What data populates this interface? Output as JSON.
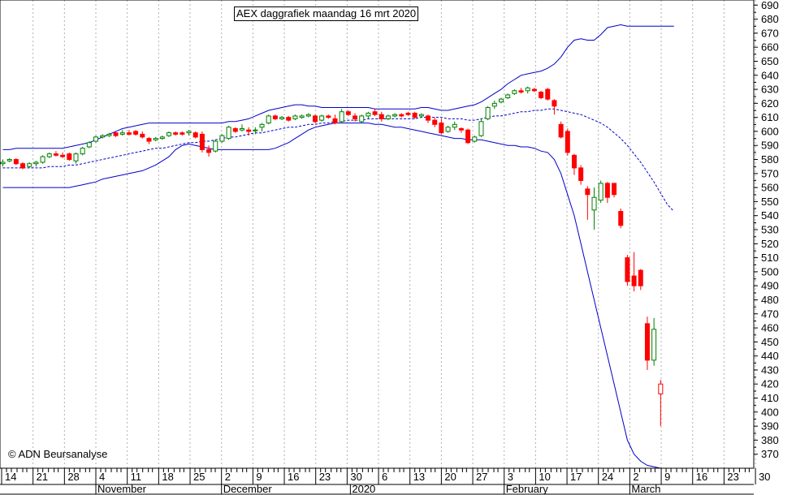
{
  "title": "AEX daggrafiek maandag 16 mrt 2020",
  "copyright": "© ADN Beursanalyse",
  "colors": {
    "up": "#008000",
    "down": "#ff0000",
    "band": "#0000cc",
    "ma": "#0000cc",
    "grid": "#b0b0b0"
  },
  "chart_data": {
    "type": "candlestick",
    "title": "AEX daggrafiek maandag 16 mrt 2020",
    "ylim": [
      360,
      700
    ],
    "yticks": [
      370,
      380,
      390,
      400,
      410,
      420,
      430,
      440,
      450,
      460,
      470,
      480,
      490,
      500,
      510,
      520,
      530,
      540,
      550,
      560,
      570,
      580,
      590,
      600,
      610,
      620,
      630,
      640,
      650,
      660,
      670,
      680,
      690
    ],
    "x_day_labels": [
      "14",
      "21",
      "28",
      "4",
      "11",
      "18",
      "25",
      "2",
      "9",
      "16",
      "23",
      "30",
      "6",
      "13",
      "20",
      "27",
      "3",
      "10",
      "17",
      "24",
      "2",
      "9",
      "16",
      "23",
      "30"
    ],
    "months": [
      "November",
      "December",
      "2020",
      "February",
      "March"
    ],
    "grid": true,
    "candles": [
      {
        "o": 577,
        "h": 580,
        "l": 575,
        "c": 578
      },
      {
        "o": 579,
        "h": 581,
        "l": 578,
        "c": 580
      },
      {
        "o": 580,
        "h": 581,
        "l": 576,
        "c": 577
      },
      {
        "o": 577,
        "h": 578,
        "l": 573,
        "c": 574
      },
      {
        "o": 575,
        "h": 578,
        "l": 574,
        "c": 577
      },
      {
        "o": 577,
        "h": 579,
        "l": 575,
        "c": 578
      },
      {
        "o": 578,
        "h": 583,
        "l": 577,
        "c": 582
      },
      {
        "o": 582,
        "h": 585,
        "l": 581,
        "c": 584
      },
      {
        "o": 584,
        "h": 586,
        "l": 582,
        "c": 583
      },
      {
        "o": 583,
        "h": 585,
        "l": 581,
        "c": 582
      },
      {
        "o": 584,
        "h": 585,
        "l": 579,
        "c": 580
      },
      {
        "o": 579,
        "h": 585,
        "l": 577,
        "c": 584
      },
      {
        "o": 584,
        "h": 589,
        "l": 583,
        "c": 588
      },
      {
        "o": 589,
        "h": 593,
        "l": 588,
        "c": 592
      },
      {
        "o": 593,
        "h": 597,
        "l": 592,
        "c": 596
      },
      {
        "o": 596,
        "h": 598,
        "l": 595,
        "c": 597
      },
      {
        "o": 597,
        "h": 599,
        "l": 596,
        "c": 598
      },
      {
        "o": 599,
        "h": 600,
        "l": 596,
        "c": 597
      },
      {
        "o": 598,
        "h": 601,
        "l": 597,
        "c": 599
      },
      {
        "o": 599,
        "h": 601,
        "l": 597,
        "c": 598
      },
      {
        "o": 600,
        "h": 601,
        "l": 597,
        "c": 598
      },
      {
        "o": 598,
        "h": 600,
        "l": 595,
        "c": 596
      },
      {
        "o": 595,
        "h": 596,
        "l": 591,
        "c": 593
      },
      {
        "o": 594,
        "h": 596,
        "l": 593,
        "c": 595
      },
      {
        "o": 595,
        "h": 597,
        "l": 594,
        "c": 596
      },
      {
        "o": 597,
        "h": 600,
        "l": 596,
        "c": 599
      },
      {
        "o": 599,
        "h": 600,
        "l": 597,
        "c": 598
      },
      {
        "o": 599,
        "h": 600,
        "l": 597,
        "c": 598
      },
      {
        "o": 599,
        "h": 601,
        "l": 597,
        "c": 600
      },
      {
        "o": 599,
        "h": 600,
        "l": 595,
        "c": 596
      },
      {
        "o": 598,
        "h": 600,
        "l": 585,
        "c": 587
      },
      {
        "o": 587,
        "h": 590,
        "l": 582,
        "c": 585
      },
      {
        "o": 586,
        "h": 594,
        "l": 585,
        "c": 593
      },
      {
        "o": 593,
        "h": 598,
        "l": 592,
        "c": 597
      },
      {
        "o": 595,
        "h": 604,
        "l": 594,
        "c": 603
      },
      {
        "o": 602,
        "h": 603,
        "l": 599,
        "c": 600
      },
      {
        "o": 601,
        "h": 605,
        "l": 600,
        "c": 602
      },
      {
        "o": 601,
        "h": 603,
        "l": 597,
        "c": 600
      },
      {
        "o": 601,
        "h": 603,
        "l": 598,
        "c": 601
      },
      {
        "o": 603,
        "h": 606,
        "l": 600,
        "c": 605
      },
      {
        "o": 606,
        "h": 612,
        "l": 605,
        "c": 611
      },
      {
        "o": 611,
        "h": 612,
        "l": 608,
        "c": 609
      },
      {
        "o": 609,
        "h": 611,
        "l": 608,
        "c": 610
      },
      {
        "o": 610,
        "h": 611,
        "l": 607,
        "c": 608
      },
      {
        "o": 609,
        "h": 612,
        "l": 608,
        "c": 611
      },
      {
        "o": 610,
        "h": 612,
        "l": 609,
        "c": 611
      },
      {
        "o": 611,
        "h": 613,
        "l": 610,
        "c": 612
      },
      {
        "o": 611,
        "h": 612,
        "l": 606,
        "c": 607
      },
      {
        "o": 608,
        "h": 612,
        "l": 607,
        "c": 611
      },
      {
        "o": 611,
        "h": 612,
        "l": 609,
        "c": 610
      },
      {
        "o": 609,
        "h": 612,
        "l": 605,
        "c": 606
      },
      {
        "o": 607,
        "h": 616,
        "l": 606,
        "c": 614
      },
      {
        "o": 614,
        "h": 615,
        "l": 611,
        "c": 612
      },
      {
        "o": 611,
        "h": 613,
        "l": 607,
        "c": 609
      },
      {
        "o": 607,
        "h": 612,
        "l": 606,
        "c": 611
      },
      {
        "o": 611,
        "h": 614,
        "l": 609,
        "c": 613
      },
      {
        "o": 614,
        "h": 616,
        "l": 611,
        "c": 612
      },
      {
        "o": 612,
        "h": 614,
        "l": 607,
        "c": 609
      },
      {
        "o": 609,
        "h": 612,
        "l": 608,
        "c": 611
      },
      {
        "o": 611,
        "h": 613,
        "l": 610,
        "c": 612
      },
      {
        "o": 612,
        "h": 613,
        "l": 610,
        "c": 611
      },
      {
        "o": 613,
        "h": 614,
        "l": 611,
        "c": 612
      },
      {
        "o": 613,
        "h": 614,
        "l": 609,
        "c": 610
      },
      {
        "o": 611,
        "h": 613,
        "l": 610,
        "c": 612
      },
      {
        "o": 611,
        "h": 612,
        "l": 606,
        "c": 608
      },
      {
        "o": 608,
        "h": 610,
        "l": 603,
        "c": 605
      },
      {
        "o": 606,
        "h": 609,
        "l": 598,
        "c": 599
      },
      {
        "o": 600,
        "h": 604,
        "l": 599,
        "c": 603
      },
      {
        "o": 603,
        "h": 607,
        "l": 601,
        "c": 605
      },
      {
        "o": 602,
        "h": 603,
        "l": 599,
        "c": 601
      },
      {
        "o": 601,
        "h": 602,
        "l": 591,
        "c": 592
      },
      {
        "o": 593,
        "h": 597,
        "l": 592,
        "c": 596
      },
      {
        "o": 597,
        "h": 609,
        "l": 596,
        "c": 607
      },
      {
        "o": 609,
        "h": 618,
        "l": 608,
        "c": 617
      },
      {
        "o": 618,
        "h": 622,
        "l": 616,
        "c": 620
      },
      {
        "o": 621,
        "h": 624,
        "l": 620,
        "c": 623
      },
      {
        "o": 624,
        "h": 627,
        "l": 623,
        "c": 626
      },
      {
        "o": 627,
        "h": 630,
        "l": 626,
        "c": 629
      },
      {
        "o": 629,
        "h": 631,
        "l": 627,
        "c": 628
      },
      {
        "o": 629,
        "h": 632,
        "l": 627,
        "c": 631
      },
      {
        "o": 630,
        "h": 631,
        "l": 628,
        "c": 629
      },
      {
        "o": 628,
        "h": 629,
        "l": 623,
        "c": 624
      },
      {
        "o": 630,
        "h": 631,
        "l": 622,
        "c": 623
      },
      {
        "o": 622,
        "h": 623,
        "l": 612,
        "c": 618
      },
      {
        "o": 605,
        "h": 607,
        "l": 595,
        "c": 596
      },
      {
        "o": 600,
        "h": 602,
        "l": 583,
        "c": 585
      },
      {
        "o": 583,
        "h": 584,
        "l": 569,
        "c": 574
      },
      {
        "o": 574,
        "h": 576,
        "l": 562,
        "c": 565
      },
      {
        "o": 559,
        "h": 561,
        "l": 537,
        "c": 555
      },
      {
        "o": 544,
        "h": 560,
        "l": 530,
        "c": 553
      },
      {
        "o": 551,
        "h": 565,
        "l": 549,
        "c": 563
      },
      {
        "o": 563,
        "h": 564,
        "l": 549,
        "c": 553
      },
      {
        "o": 563,
        "h": 563,
        "l": 553,
        "c": 555
      },
      {
        "o": 543,
        "h": 545,
        "l": 531,
        "c": 533
      },
      {
        "o": 510,
        "h": 512,
        "l": 490,
        "c": 493
      },
      {
        "o": 497,
        "h": 514,
        "l": 486,
        "c": 490
      },
      {
        "o": 501,
        "h": 502,
        "l": 487,
        "c": 490
      },
      {
        "o": 463,
        "h": 468,
        "l": 430,
        "c": 437
      },
      {
        "o": 437,
        "h": 467,
        "l": 433,
        "c": 459
      },
      {
        "o": 420,
        "h": 423,
        "l": 390,
        "c": 413
      }
    ],
    "sma": [
      574,
      574,
      574,
      574,
      574,
      574,
      574,
      575,
      575,
      575,
      576,
      576,
      577,
      578,
      579,
      580,
      581,
      582,
      583,
      584,
      585,
      586,
      587,
      588,
      588,
      589,
      590,
      591,
      592,
      592,
      593,
      593,
      594,
      595,
      596,
      596,
      597,
      598,
      599,
      599,
      600,
      601,
      602,
      603,
      603,
      604,
      605,
      605,
      606,
      606,
      607,
      607,
      608,
      608,
      608,
      609,
      609,
      609,
      609,
      609,
      609,
      609,
      609,
      610,
      610,
      610,
      610,
      609,
      609,
      609,
      608,
      608,
      609,
      610,
      611,
      611,
      612,
      613,
      614,
      614,
      615,
      615,
      616,
      616,
      615,
      614,
      613,
      612,
      610,
      608,
      606,
      603,
      599,
      595,
      590,
      584,
      578,
      571,
      564,
      556,
      548,
      543
    ],
    "bb_upper": [
      587,
      587,
      588,
      588,
      588,
      588,
      588,
      588,
      588,
      588,
      589,
      590,
      591,
      592,
      594,
      596,
      598,
      600,
      602,
      603,
      604,
      605,
      606,
      606,
      606,
      606,
      606,
      606,
      606,
      606,
      606,
      606,
      606,
      606,
      607,
      607,
      608,
      609,
      611,
      613,
      615,
      616,
      617,
      618,
      619,
      619,
      618,
      618,
      617,
      617,
      617,
      617,
      617,
      617,
      617,
      617,
      616,
      616,
      616,
      616,
      616,
      616,
      616,
      617,
      617,
      616,
      615,
      615,
      616,
      617,
      618,
      619,
      621,
      624,
      627,
      630,
      634,
      637,
      640,
      641,
      642,
      643,
      645,
      648,
      653,
      660,
      665,
      666,
      665,
      665,
      669,
      674,
      675,
      676,
      675,
      675,
      675,
      675,
      675,
      675,
      675,
      675
    ],
    "bb_lower": [
      560,
      560,
      560,
      560,
      560,
      560,
      560,
      560,
      560,
      560,
      560,
      561,
      562,
      563,
      564,
      566,
      567,
      568,
      569,
      570,
      571,
      572,
      574,
      576,
      579,
      582,
      587,
      590,
      591,
      590,
      589,
      588,
      587,
      587,
      587,
      587,
      587,
      587,
      587,
      587,
      587,
      588,
      590,
      592,
      595,
      598,
      601,
      603,
      604,
      605,
      606,
      606,
      606,
      606,
      606,
      606,
      605,
      605,
      604,
      603,
      603,
      602,
      601,
      600,
      599,
      598,
      597,
      596,
      595,
      595,
      594,
      594,
      594,
      593,
      592,
      591,
      590,
      590,
      589,
      589,
      588,
      586,
      585,
      580,
      570,
      555,
      540,
      520,
      500,
      480,
      460,
      440,
      420,
      400,
      380,
      370,
      365,
      362,
      361,
      360,
      360,
      360
    ]
  }
}
